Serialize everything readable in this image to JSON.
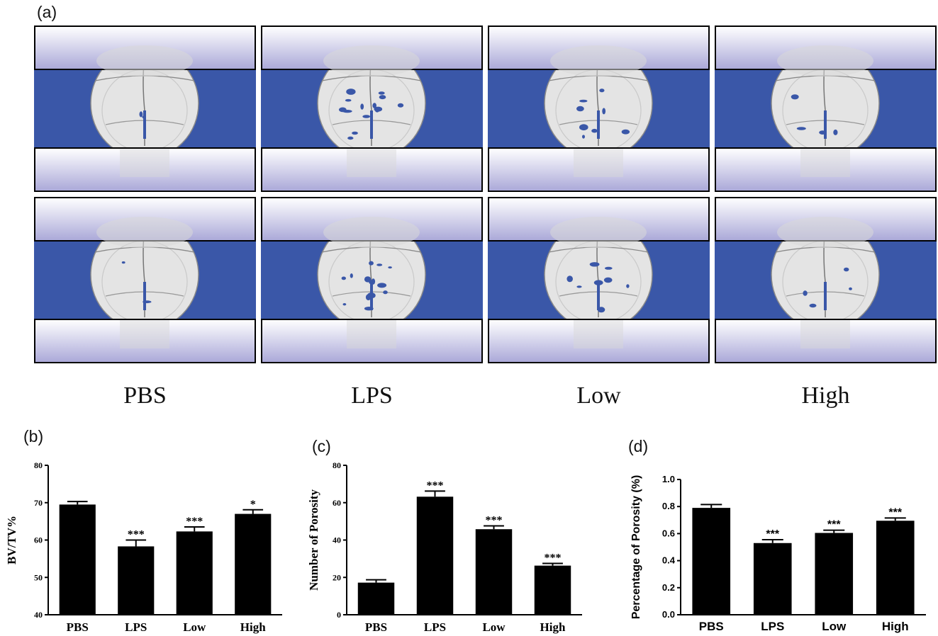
{
  "panel_labels": {
    "a": "(a)",
    "b": "(b)",
    "c": "(c)",
    "d": "(d)"
  },
  "groups": [
    "PBS",
    "LPS",
    "Low",
    "High"
  ],
  "colors": {
    "scan_background": "#3a57a8",
    "bar": "#000000",
    "sky_top": "#ffffff",
    "sky_bottom": "#aaa8d8"
  },
  "chart_data": [
    {
      "type": "bar",
      "panel": "(b)",
      "categories": [
        "PBS",
        "LPS",
        "Low",
        "High"
      ],
      "values": [
        69.5,
        58.3,
        62.3,
        67.0
      ],
      "errors": [
        0.8,
        1.7,
        1.2,
        1.1
      ],
      "significance": [
        "",
        "***",
        "***",
        "*"
      ],
      "ylabel": "BV/TV%",
      "ylim": [
        40,
        80
      ],
      "yticks": [
        "40",
        "50",
        "60",
        "70",
        "80"
      ],
      "grid": false
    },
    {
      "type": "bar",
      "panel": "(c)",
      "categories": [
        "PBS",
        "LPS",
        "Low",
        "High"
      ],
      "values": [
        17.2,
        63.2,
        45.8,
        26.3
      ],
      "errors": [
        1.5,
        3.0,
        1.8,
        1.2
      ],
      "significance": [
        "",
        "***",
        "***",
        "***"
      ],
      "ylabel": "Number of Porosity",
      "ylim": [
        0,
        80
      ],
      "yticks": [
        "0",
        "20",
        "40",
        "60",
        "80"
      ],
      "grid": false
    },
    {
      "type": "bar",
      "panel": "(d)",
      "categories": [
        "PBS",
        "LPS",
        "Low",
        "High"
      ],
      "values": [
        0.79,
        0.53,
        0.605,
        0.695
      ],
      "errors": [
        0.025,
        0.025,
        0.02,
        0.02
      ],
      "significance": [
        "",
        "***",
        "***",
        "***"
      ],
      "ylabel": "Percentage of Porosity  (%)",
      "ylim": [
        0,
        1.0
      ],
      "yticks": [
        "0.0",
        "0.2",
        "0.4",
        "0.6",
        "0.8",
        "1.0"
      ],
      "grid": false
    }
  ]
}
